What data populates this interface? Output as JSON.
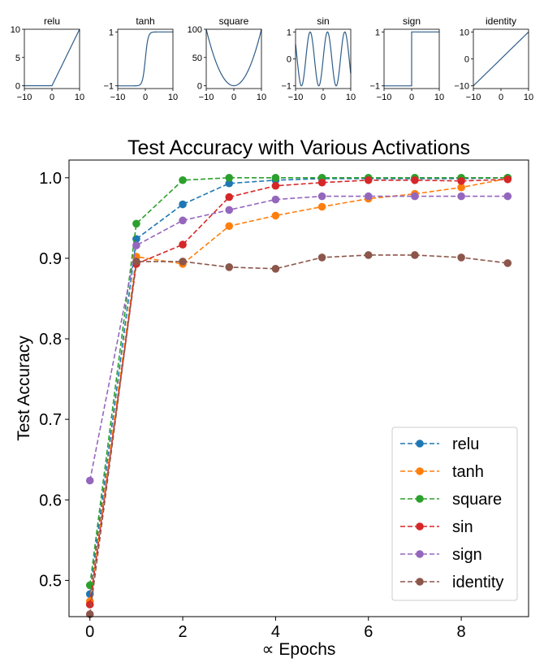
{
  "chart_data": [
    {
      "type": "line",
      "title": "relu",
      "xlim": [
        -10,
        10
      ],
      "ylim": [
        -0.5,
        10
      ],
      "x_ticks": [
        "−10",
        "0",
        "10"
      ],
      "y_ticks": [
        "0",
        "5",
        "10"
      ],
      "function": "relu",
      "color": "#2f5d8a"
    },
    {
      "type": "line",
      "title": "tanh",
      "xlim": [
        -10,
        10
      ],
      "ylim": [
        -1.1,
        1.1
      ],
      "x_ticks": [
        "−10",
        "0",
        "10"
      ],
      "y_ticks": [
        "−1",
        "1"
      ],
      "function": "tanh",
      "color": "#2f5d8a"
    },
    {
      "type": "line",
      "title": "square",
      "xlim": [
        -10,
        10
      ],
      "ylim": [
        -5,
        100
      ],
      "x_ticks": [
        "−10",
        "0",
        "10"
      ],
      "y_ticks": [
        "0",
        "50",
        "100"
      ],
      "function": "square",
      "color": "#2f5d8a"
    },
    {
      "type": "line",
      "title": "sin",
      "xlim": [
        -10,
        10
      ],
      "ylim": [
        -1.1,
        1.1
      ],
      "x_ticks": [
        "−10",
        "0",
        "10"
      ],
      "y_ticks": [
        "−1",
        "0",
        "1"
      ],
      "function": "sin",
      "color": "#2f5d8a"
    },
    {
      "type": "line",
      "title": "sign",
      "xlim": [
        -10,
        10
      ],
      "ylim": [
        -1.1,
        1.1
      ],
      "x_ticks": [
        "−10",
        "0",
        "10"
      ],
      "y_ticks": [
        "−1",
        "1"
      ],
      "function": "sign",
      "color": "#2f5d8a"
    },
    {
      "type": "line",
      "title": "identity",
      "xlim": [
        -10,
        10
      ],
      "ylim": [
        -11,
        11
      ],
      "x_ticks": [
        "−10",
        "0",
        "10"
      ],
      "y_ticks": [
        "−10",
        "0",
        "10"
      ],
      "function": "identity",
      "color": "#2f5d8a"
    },
    {
      "type": "line",
      "title": "Test Accuracy with Various Activations",
      "xlabel": "∝ Epochs",
      "ylabel": "Test Accuracy",
      "xlim": [
        -0.45,
        9.45
      ],
      "ylim": [
        0.455,
        1.022
      ],
      "x_ticks": [
        0,
        2,
        4,
        6,
        8
      ],
      "y_ticks": [
        0.5,
        0.6,
        0.7,
        0.8,
        0.9,
        1.0
      ],
      "grid": false,
      "legend_position": "lower-right",
      "style": "dashed line with circle markers",
      "x": [
        0,
        1,
        2,
        3,
        4,
        5,
        6,
        7,
        8,
        9
      ],
      "series": [
        {
          "name": "relu",
          "color": "#1f77b4",
          "values": [
            0.483,
            0.924,
            0.967,
            0.993,
            0.997,
            0.999,
            0.999,
            0.999,
            0.999,
            1.0
          ]
        },
        {
          "name": "tanh",
          "color": "#ff7f0e",
          "values": [
            0.474,
            0.902,
            0.893,
            0.94,
            0.953,
            0.964,
            0.974,
            0.98,
            0.988,
            0.999
          ]
        },
        {
          "name": "square",
          "color": "#2ca02c",
          "values": [
            0.494,
            0.943,
            0.997,
            1.0,
            1.0,
            1.0,
            1.0,
            1.0,
            1.0,
            1.0
          ]
        },
        {
          "name": "sin",
          "color": "#d62728",
          "values": [
            0.47,
            0.893,
            0.917,
            0.976,
            0.99,
            0.994,
            0.997,
            0.997,
            0.996,
            0.998
          ]
        },
        {
          "name": "sign",
          "color": "#9467bd",
          "values": [
            0.624,
            0.916,
            0.947,
            0.96,
            0.973,
            0.977,
            0.977,
            0.977,
            0.977,
            0.977
          ]
        },
        {
          "name": "identity",
          "color": "#8c564b",
          "values": [
            0.458,
            0.896,
            0.896,
            0.889,
            0.887,
            0.901,
            0.904,
            0.904,
            0.901,
            0.894
          ]
        }
      ]
    }
  ]
}
